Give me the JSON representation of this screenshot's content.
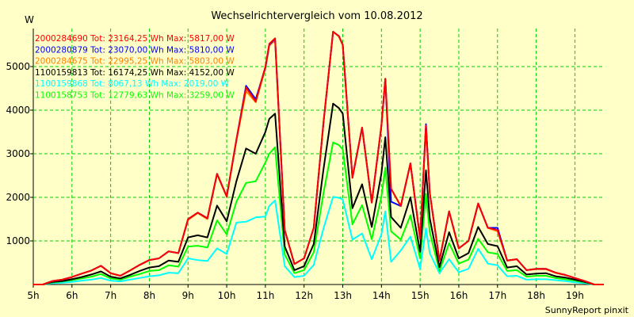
{
  "chart_data": {
    "type": "line",
    "title": "Wechselrichtervergleich vom 10.08.2012",
    "ylabel": "W",
    "xlabel": "",
    "footer": "SunnyReport pinxit",
    "xlim": [
      5,
      19.75
    ],
    "ylim": [
      0,
      5800
    ],
    "x_ticks": [
      5,
      6,
      7,
      8,
      9,
      10,
      11,
      12,
      13,
      14,
      15,
      16,
      17,
      18,
      19
    ],
    "x_tick_labels": [
      "5h",
      "6h",
      "7h",
      "8h",
      "9h",
      "10h",
      "11h",
      "12h",
      "13h",
      "14h",
      "15h",
      "16h",
      "17h",
      "18h",
      "19h"
    ],
    "y_ticks": [
      1000,
      2000,
      3000,
      4000,
      5000
    ],
    "y_tick_labels": [
      "1000",
      "2000",
      "3000",
      "4000",
      "5000"
    ],
    "grid": true,
    "legend_position": "top-left",
    "x": [
      5.0,
      5.25,
      5.5,
      5.75,
      6.0,
      6.25,
      6.5,
      6.75,
      7.0,
      7.25,
      7.5,
      7.75,
      8.0,
      8.25,
      8.5,
      8.75,
      9.0,
      9.25,
      9.5,
      9.75,
      10.0,
      10.25,
      10.5,
      10.75,
      11.0,
      11.1,
      11.25,
      11.5,
      11.75,
      12.0,
      12.25,
      12.5,
      12.75,
      12.9,
      13.0,
      13.25,
      13.5,
      13.75,
      14.0,
      14.1,
      14.25,
      14.5,
      14.75,
      15.0,
      15.15,
      15.25,
      15.5,
      15.75,
      16.0,
      16.25,
      16.5,
      16.75,
      17.0,
      17.25,
      17.5,
      17.75,
      18.0,
      18.25,
      18.5,
      18.75,
      19.0,
      19.25,
      19.5,
      19.75
    ],
    "series": [
      {
        "name": "2000284690",
        "label": "2000284690 Tot: 23164,25 Wh Max: 5817,00 W",
        "color": "#ff0000",
        "values": [
          0,
          0,
          80,
          110,
          170,
          250,
          320,
          430,
          260,
          200,
          320,
          450,
          560,
          600,
          760,
          720,
          1500,
          1650,
          1520,
          2540,
          2020,
          3320,
          4520,
          4200,
          5000,
          5520,
          5650,
          1250,
          470,
          600,
          1300,
          3700,
          5800,
          5700,
          5500,
          2450,
          3600,
          1880,
          3650,
          4720,
          2200,
          1800,
          2780,
          1050,
          3650,
          2100,
          550,
          1680,
          830,
          1000,
          1860,
          1300,
          1250,
          550,
          580,
          330,
          360,
          360,
          270,
          220,
          150,
          80,
          0,
          0
        ]
      },
      {
        "name": "2000280879",
        "label": "2000280879 Tot: 23070,00 Wh Max: 5810,00 W",
        "color": "#0000ff",
        "values": [
          0,
          0,
          80,
          110,
          170,
          250,
          320,
          430,
          260,
          200,
          320,
          450,
          560,
          600,
          760,
          720,
          1500,
          1650,
          1520,
          2540,
          2020,
          3320,
          4560,
          4250,
          4980,
          5500,
          5640,
          1250,
          470,
          600,
          1300,
          3700,
          5800,
          5700,
          5500,
          2450,
          3600,
          1880,
          3650,
          4720,
          1900,
          1800,
          2780,
          1050,
          3680,
          2100,
          550,
          1680,
          830,
          1000,
          1860,
          1300,
          1300,
          550,
          580,
          330,
          360,
          360,
          270,
          220,
          150,
          80,
          0,
          0
        ]
      },
      {
        "name": "2000284675",
        "label": "2000284675 Tot: 22995,25 Wh Max: 5803,00 W",
        "color": "#ff8000",
        "values": [
          0,
          0,
          80,
          110,
          170,
          250,
          320,
          430,
          260,
          200,
          320,
          450,
          560,
          600,
          760,
          720,
          1480,
          1640,
          1500,
          2530,
          2010,
          3300,
          4440,
          4180,
          4960,
          5480,
          5600,
          1240,
          470,
          600,
          1300,
          3690,
          5800,
          5690,
          5490,
          2450,
          3600,
          1880,
          3640,
          4710,
          2190,
          1800,
          2770,
          1050,
          3620,
          2100,
          550,
          1670,
          830,
          1000,
          1850,
          1300,
          1220,
          550,
          580,
          330,
          350,
          350,
          270,
          220,
          150,
          80,
          0,
          0
        ]
      },
      {
        "name": "1100159813",
        "label": "1100159813 Tot: 16174,25 Wh Max: 4152,00 W",
        "color": "#000000",
        "values": [
          0,
          0,
          60,
          80,
          120,
          170,
          230,
          300,
          180,
          140,
          220,
          310,
          390,
          420,
          550,
          520,
          1080,
          1130,
          1080,
          1810,
          1450,
          2370,
          3120,
          3000,
          3500,
          3800,
          3920,
          870,
          330,
          420,
          930,
          2630,
          4150,
          4050,
          3920,
          1750,
          2300,
          1320,
          2550,
          3380,
          1550,
          1300,
          2000,
          750,
          2620,
          1520,
          400,
          1200,
          600,
          720,
          1320,
          930,
          880,
          390,
          420,
          230,
          250,
          260,
          190,
          160,
          110,
          60,
          0,
          0
        ]
      },
      {
        "name": "1100159868",
        "label": "1100159868 Tot: 8067,13 Wh Max: 2019,00 W",
        "color": "#00ffff",
        "values": [
          0,
          0,
          30,
          40,
          60,
          90,
          110,
          150,
          90,
          70,
          110,
          150,
          190,
          210,
          270,
          260,
          600,
          560,
          540,
          830,
          700,
          1420,
          1440,
          1540,
          1560,
          1800,
          1930,
          420,
          170,
          200,
          450,
          1280,
          2010,
          1990,
          1950,
          1030,
          1170,
          580,
          1150,
          1680,
          520,
          780,
          1100,
          360,
          1290,
          720,
          260,
          580,
          280,
          360,
          820,
          480,
          440,
          190,
          200,
          110,
          120,
          120,
          100,
          80,
          50,
          30,
          0,
          0
        ]
      },
      {
        "name": "1100158753",
        "label": "1100158753 Tot: 12779,63 Wh Max: 3259,00 W",
        "color": "#00ff00",
        "values": [
          0,
          0,
          50,
          70,
          100,
          140,
          180,
          240,
          140,
          110,
          180,
          240,
          310,
          330,
          440,
          410,
          870,
          890,
          850,
          1470,
          1150,
          1900,
          2330,
          2370,
          2800,
          3000,
          3150,
          690,
          260,
          330,
          740,
          2090,
          3260,
          3200,
          3100,
          1380,
          1820,
          1040,
          2020,
          2680,
          1220,
          1030,
          1590,
          600,
          2080,
          1200,
          310,
          950,
          480,
          570,
          1050,
          740,
          700,
          310,
          330,
          180,
          200,
          200,
          150,
          120,
          90,
          50,
          0,
          0
        ]
      }
    ]
  }
}
